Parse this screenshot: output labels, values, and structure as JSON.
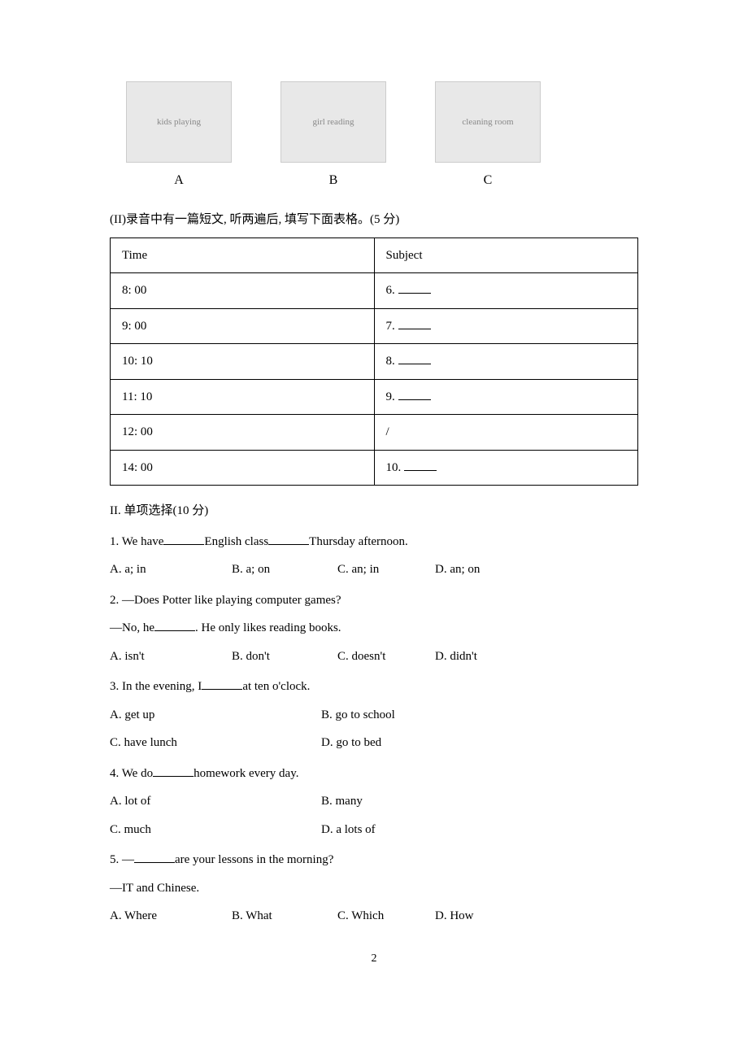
{
  "images": {
    "labels": [
      "A",
      "B",
      "C"
    ],
    "alts": [
      "kids playing",
      "girl reading",
      "cleaning room"
    ]
  },
  "instruction_ii": "(II)录音中有一篇短文, 听两遍后, 填写下面表格。(5 分)",
  "table": {
    "header": {
      "col1": "Time",
      "col2": "Subject"
    },
    "rows": [
      {
        "time": "8: 00",
        "subject_prefix": "6. ",
        "has_blank": true
      },
      {
        "time": "9: 00",
        "subject_prefix": "7. ",
        "has_blank": true
      },
      {
        "time": "10: 10",
        "subject_prefix": "8. ",
        "has_blank": true
      },
      {
        "time": "11: 10",
        "subject_prefix": "9. ",
        "has_blank": true
      },
      {
        "time": "12: 00",
        "subject_prefix": "/",
        "has_blank": false
      },
      {
        "time": "14: 00",
        "subject_prefix": "10. ",
        "has_blank": true
      }
    ]
  },
  "section2_title": "II. 单项选择(10 分)",
  "questions": {
    "q1": {
      "text_before": "1. We have",
      "text_mid": "English class",
      "text_after": "Thursday afternoon.",
      "opts": [
        "A. a; in",
        "B. a; on",
        "C. an; in",
        "D. an; on"
      ]
    },
    "q2": {
      "line1": "2. —Does Potter like playing computer games?",
      "line2_before": "—No, he",
      "line2_after": ". He only likes reading books.",
      "opts": [
        "A. isn't",
        "B. don't",
        "C. doesn't",
        "D. didn't"
      ]
    },
    "q3": {
      "text_before": "3. In the evening, I",
      "text_after": "at ten o'clock.",
      "opts": [
        "A. get up",
        "B. go to school",
        "C. have lunch",
        "D. go to bed"
      ]
    },
    "q4": {
      "text_before": "4. We do",
      "text_after": "homework every day.",
      "opts": [
        "A. lot of",
        "B. many",
        "C. much",
        "D. a lots of"
      ]
    },
    "q5": {
      "line1_before": "5. —",
      "line1_after": "are your lessons in the morning?",
      "line2": "—IT and Chinese.",
      "opts": [
        "A. Where",
        "B. What",
        "C. Which",
        "D. How"
      ]
    }
  },
  "page_number": "2"
}
